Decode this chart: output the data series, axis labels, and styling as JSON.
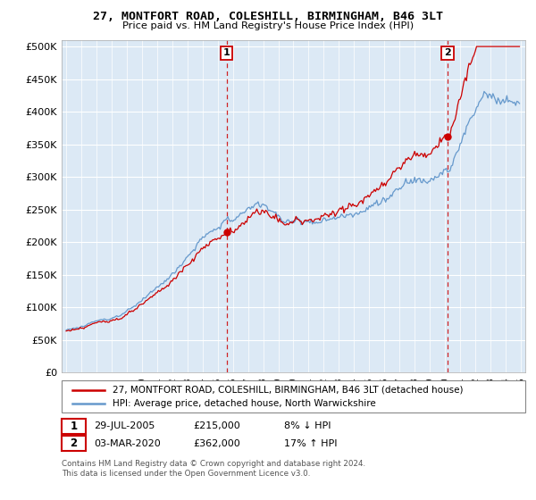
{
  "title": "27, MONTFORT ROAD, COLESHILL, BIRMINGHAM, B46 3LT",
  "subtitle": "Price paid vs. HM Land Registry's House Price Index (HPI)",
  "sale1_date": "29-JUL-2005",
  "sale1_price": 215000,
  "sale1_label": "8% ↓ HPI",
  "sale1_year": 2005.57,
  "sale2_date": "03-MAR-2020",
  "sale2_price": 362000,
  "sale2_label": "17% ↑ HPI",
  "sale2_year": 2020.17,
  "legend_line1": "27, MONTFORT ROAD, COLESHILL, BIRMINGHAM, B46 3LT (detached house)",
  "legend_line2": "HPI: Average price, detached house, North Warwickshire",
  "footer1": "Contains HM Land Registry data © Crown copyright and database right 2024.",
  "footer2": "This data is licensed under the Open Government Licence v3.0.",
  "hpi_color": "#6699cc",
  "sale_color": "#cc0000",
  "background_color": "#dce9f5",
  "ylim": [
    0,
    510000
  ],
  "yticks": [
    0,
    50000,
    100000,
    150000,
    200000,
    250000,
    300000,
    350000,
    400000,
    450000,
    500000
  ],
  "xlim_start": 1994.7,
  "xlim_end": 2025.3
}
